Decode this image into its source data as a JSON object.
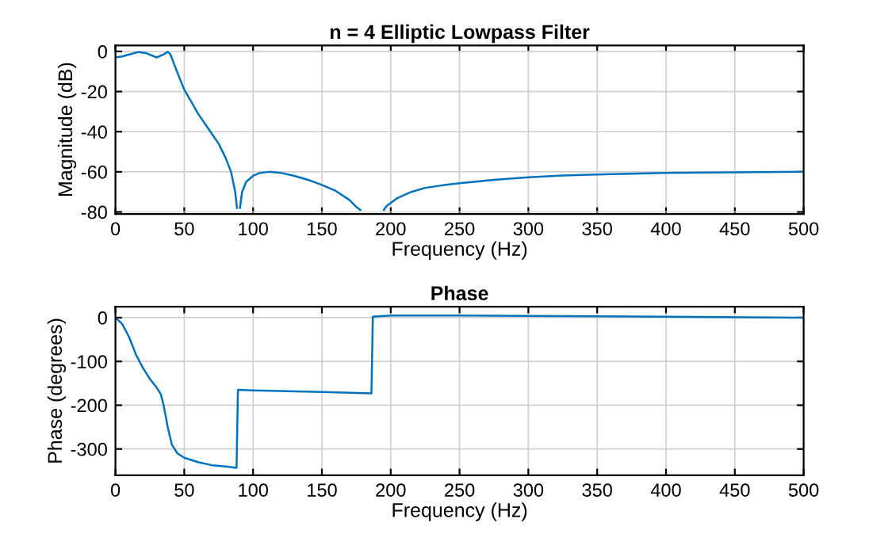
{
  "chart_data": [
    {
      "type": "line",
      "title": "n = 4 Elliptic Lowpass Filter",
      "xlabel": "Frequency (Hz)",
      "ylabel": "Magnitude (dB)",
      "xlim": [
        0,
        500
      ],
      "xticks": [
        0,
        50,
        100,
        150,
        200,
        250,
        300,
        350,
        400,
        450,
        500
      ],
      "ylim": [
        -81,
        3
      ],
      "yticks": [
        -80,
        -60,
        -40,
        -20,
        0
      ],
      "grid": true,
      "series": [
        {
          "color": "#0072bd",
          "x": [
            0,
            5,
            10,
            17,
            22,
            30,
            35,
            38,
            40,
            43,
            47,
            50,
            55,
            60,
            65,
            70,
            75,
            80,
            84,
            87,
            88.3,
            89,
            90.5,
            92,
            95,
            100,
            105,
            112,
            120,
            130,
            140,
            150,
            160,
            170,
            175,
            178,
            187,
            195,
            197,
            205,
            215,
            225,
            240,
            250,
            275,
            300,
            325,
            350,
            400,
            450,
            500
          ],
          "values": [
            -3,
            -2.5,
            -1.5,
            -0.3,
            -0.8,
            -3,
            -1.5,
            -0.2,
            -1.5,
            -7,
            -14,
            -19,
            -25,
            -31,
            -36,
            -41,
            -46,
            -53,
            -60,
            -70,
            -78,
            null,
            -78,
            -70,
            -65,
            -62,
            -60.5,
            -60,
            -60.5,
            -62,
            -64,
            -66.5,
            -69.5,
            -74,
            -77.5,
            -79,
            null,
            -79,
            -77,
            -73,
            -70,
            -68,
            -66.5,
            -65.7,
            -64,
            -62.7,
            -61.8,
            -61.3,
            -60.5,
            -60.2,
            -60
          ]
        }
      ]
    },
    {
      "type": "line",
      "title": "Phase",
      "xlabel": "Frequency (Hz)",
      "ylabel": "Phase (degrees)",
      "xlim": [
        0,
        500
      ],
      "xticks": [
        0,
        50,
        100,
        150,
        200,
        250,
        300,
        350,
        400,
        450,
        500
      ],
      "ylim": [
        -360,
        25
      ],
      "yticks": [
        -300,
        -200,
        -100,
        0
      ],
      "grid": true,
      "series": [
        {
          "color": "#0072bd",
          "x": [
            0,
            5,
            10,
            15,
            20,
            25,
            30,
            33,
            35,
            38,
            41,
            45,
            50,
            60,
            70,
            80,
            88,
            89,
            100,
            150,
            186,
            187,
            200,
            250,
            300,
            400,
            500
          ],
          "values": [
            0,
            -15,
            -45,
            -85,
            -115,
            -140,
            -160,
            -175,
            -200,
            -250,
            -290,
            -310,
            -320,
            -330,
            -337,
            -340,
            -343,
            -165,
            -166,
            -170,
            -173,
            2,
            5,
            5,
            4,
            2,
            0
          ]
        }
      ]
    }
  ]
}
